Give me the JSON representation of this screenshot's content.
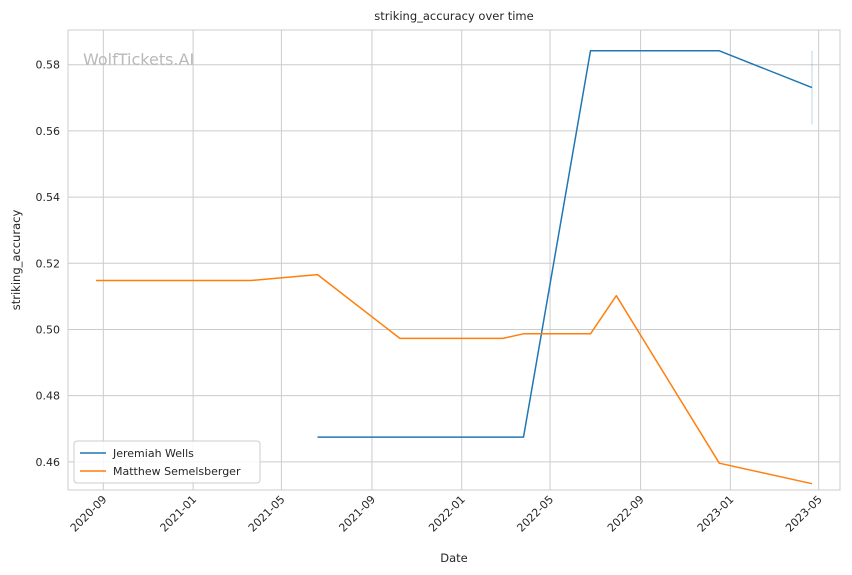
{
  "chart_data": {
    "type": "line",
    "title": "striking_accuracy over time",
    "xlabel": "Date",
    "ylabel": "striking_accuracy",
    "watermark": "WolfTickets.AI",
    "x_ticks": [
      "2020-09",
      "2021-01",
      "2021-05",
      "2021-09",
      "2022-01",
      "2022-05",
      "2022-09",
      "2023-01",
      "2023-05"
    ],
    "y_ticks": [
      "0.46",
      "0.48",
      "0.50",
      "0.52",
      "0.54",
      "0.56",
      "0.58"
    ],
    "xlim": [
      "2020-07-15",
      "2023-05-30"
    ],
    "ylim": [
      0.4515,
      0.5905
    ],
    "grid": true,
    "legend_position": "lower-left",
    "series": [
      {
        "name": "Jeremiah Wells",
        "color": "#1f77b4",
        "points": [
          {
            "x": "2021-06-19",
            "y": 0.4675
          },
          {
            "x": "2022-03-26",
            "y": 0.4675
          },
          {
            "x": "2022-06-25",
            "y": 0.5842
          },
          {
            "x": "2022-12-17",
            "y": 0.5842
          },
          {
            "x": "2023-04-22",
            "y": 0.5731
          }
        ],
        "error_band": {
          "x": "2023-04-22",
          "low": 0.562,
          "high": 0.5842
        }
      },
      {
        "name": "Matthew Semelsberger",
        "color": "#ff7f0e",
        "points": [
          {
            "x": "2020-08-22",
            "y": 0.5148
          },
          {
            "x": "2021-03-20",
            "y": 0.5148
          },
          {
            "x": "2021-06-19",
            "y": 0.5166
          },
          {
            "x": "2021-10-09",
            "y": 0.4973
          },
          {
            "x": "2022-02-26",
            "y": 0.4973
          },
          {
            "x": "2022-03-26",
            "y": 0.4987
          },
          {
            "x": "2022-06-25",
            "y": 0.4987
          },
          {
            "x": "2022-07-30",
            "y": 0.5102
          },
          {
            "x": "2022-12-17",
            "y": 0.4596
          },
          {
            "x": "2023-04-22",
            "y": 0.4534
          }
        ]
      }
    ]
  }
}
